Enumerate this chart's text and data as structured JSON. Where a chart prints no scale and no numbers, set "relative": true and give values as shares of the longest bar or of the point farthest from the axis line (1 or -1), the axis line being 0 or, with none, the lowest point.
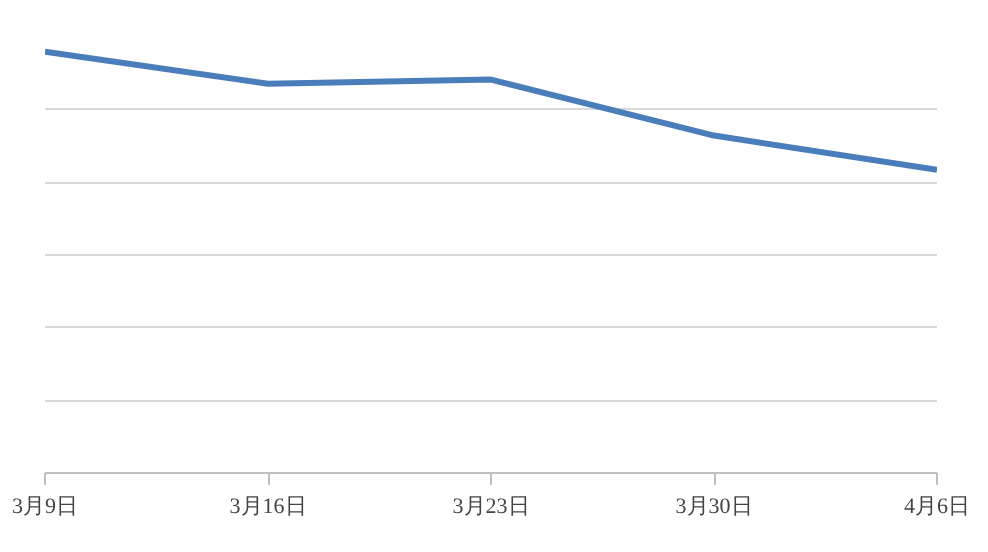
{
  "chart_data": {
    "type": "line",
    "categories": [
      "3月9日",
      "3月16日",
      "3月23日",
      "3月30日",
      "4月6日"
    ],
    "relative": true,
    "grid": "y",
    "series": [
      {
        "color": "#4a7ebb",
        "values": [
          1,
          0.924,
          0.934,
          0.801,
          0.72
        ]
      }
    ]
  }
}
